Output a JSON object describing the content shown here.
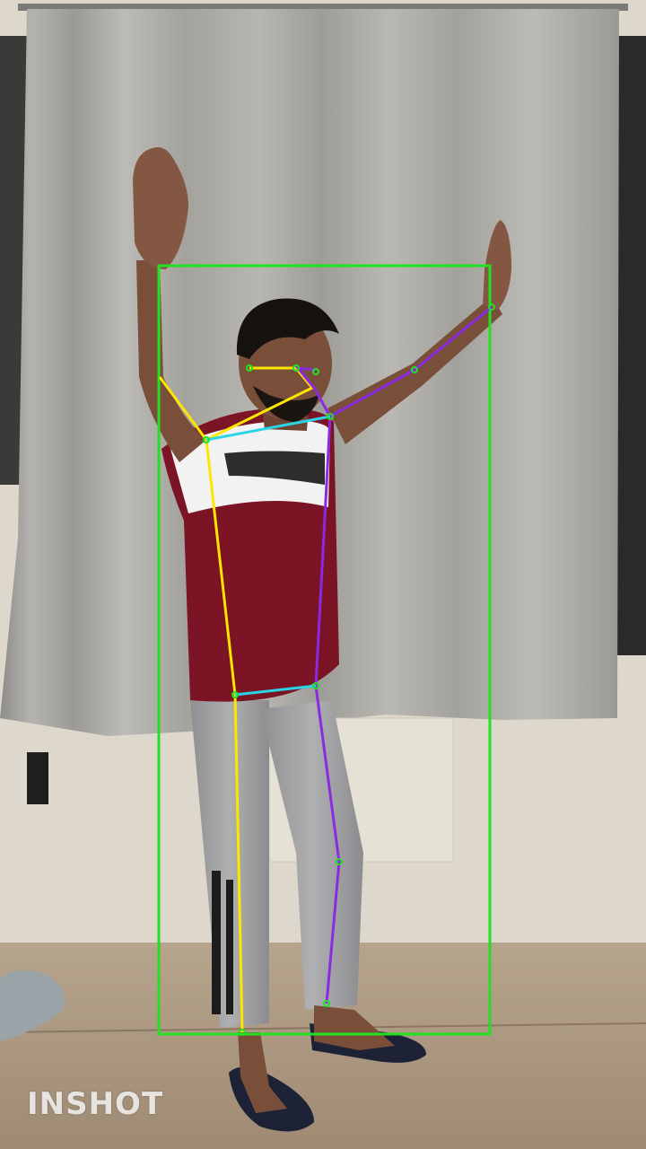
{
  "photo": {
    "description_free": true,
    "watermark_text": "INSHOT"
  },
  "overlay": {
    "box_color": "#22e022",
    "left_side_color": "#ffe600",
    "right_side_color": "#8a2be2",
    "torso_cross_color": "#2ad4e6",
    "keypoint_color": "#22e022"
  }
}
